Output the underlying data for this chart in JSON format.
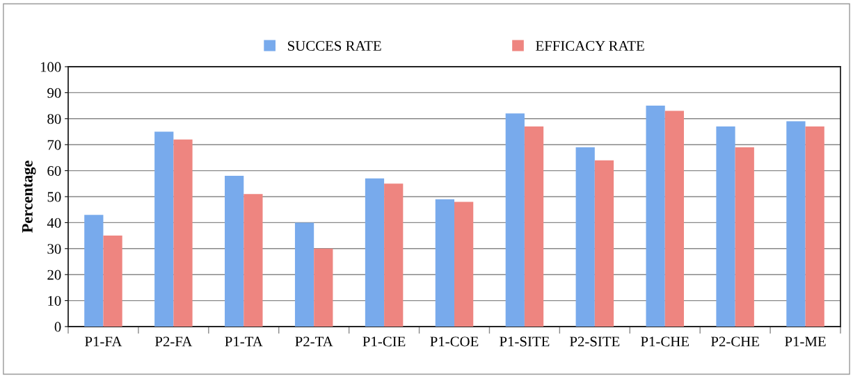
{
  "chart_data": {
    "type": "bar",
    "ylabel": "Percentage",
    "categories": [
      "P1-FA",
      "P2-FA",
      "P1-TA",
      "P2-TA",
      "P1-CIE",
      "P1-COE",
      "P1-SITE",
      "P2-SITE",
      "P1-CHE",
      "P2-CHE",
      "P1-ME"
    ],
    "series": [
      {
        "name": "SUCCES RATE",
        "color": "#78aaec",
        "values": [
          43,
          75,
          58,
          40,
          57,
          49,
          82,
          69,
          85,
          77,
          79
        ]
      },
      {
        "name": "EFFICACY RATE",
        "color": "#ee8580",
        "values": [
          35,
          72,
          51,
          30,
          55,
          48,
          77,
          64,
          83,
          69,
          77
        ]
      }
    ],
    "ylim": [
      0,
      100
    ],
    "yticks": [
      0,
      10,
      20,
      30,
      40,
      50,
      60,
      70,
      80,
      90,
      100
    ],
    "grid": "y",
    "legend": "top"
  }
}
